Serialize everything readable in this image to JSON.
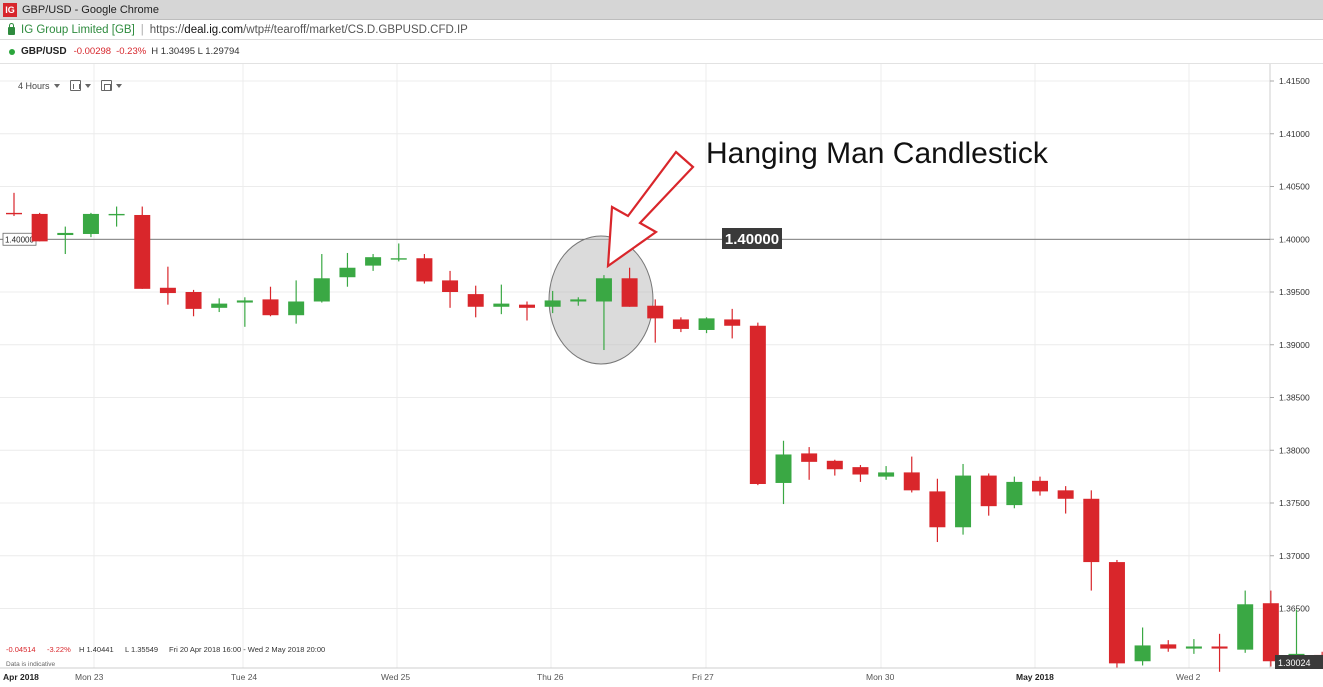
{
  "window": {
    "title": "GBP/USD - Google Chrome",
    "logo_text": "IG"
  },
  "address_bar": {
    "site_name": "IG Group Limited [GB]",
    "separator": "|",
    "url_prefix": "https://",
    "url_domain": "deal.ig.com",
    "url_path": "/wtp#/tearoff/market/CS.D.GBPUSD.CFD.IP"
  },
  "market": {
    "name": "GBP/USD",
    "change": "-0.00298",
    "change_pct": "-0.23%",
    "high_low": "H 1.30495  L 1.29794"
  },
  "toolbar": {
    "timeframe": "4 Hours",
    "chart_type_icon": "candles-icon",
    "calendar_icon": "calendar-icon"
  },
  "footer": {
    "change": "-0.04514",
    "change_pct": "-3.22%",
    "high": "H 1.40441",
    "low": "L 1.35549",
    "range": "Fri 20 Apr 2018 16:00 - Wed 2 May 2018 20:00",
    "indicative": "Data is indicative"
  },
  "annotation": {
    "text": "Hanging Man Candlestick",
    "level_label": "1.40000"
  },
  "colors": {
    "up": "#3aa844",
    "down": "#d9262b",
    "arrow": "#d9262b",
    "label_bg": "#3a3a3a"
  },
  "chart_data": {
    "type": "candlestick",
    "timeframe": "4 Hours",
    "ylim": [
      1.3,
      1.418
    ],
    "y_ticks": [
      "1.41500",
      "1.41000",
      "1.40500",
      "1.40000",
      "1.39500",
      "1.39000",
      "1.38500",
      "1.38000",
      "1.37500",
      "1.37000",
      "1.36500"
    ],
    "x_labels": [
      "Apr 2018",
      "Mon 23",
      "Tue 24",
      "Wed 25",
      "Thu 26",
      "Fri 27",
      "Mon 30",
      "May 2018",
      "Wed 2"
    ],
    "horizontal_line": 1.4,
    "horizontal_line_left_label": "1.40000",
    "last_price_label": "1.30024",
    "candles": [
      {
        "o": 1.4025,
        "h": 1.4044,
        "l": 1.4022,
        "c": 1.4024
      },
      {
        "o": 1.4024,
        "h": 1.4025,
        "l": 1.3998,
        "c": 1.3998
      },
      {
        "o": 1.4004,
        "h": 1.4012,
        "l": 1.3986,
        "c": 1.4006
      },
      {
        "o": 1.4005,
        "h": 1.4025,
        "l": 1.4002,
        "c": 1.4024
      },
      {
        "o": 1.4024,
        "h": 1.4031,
        "l": 1.4012,
        "c": 1.4024
      },
      {
        "o": 1.4023,
        "h": 1.4031,
        "l": 1.3953,
        "c": 1.3953
      },
      {
        "o": 1.3954,
        "h": 1.3974,
        "l": 1.3938,
        "c": 1.3949
      },
      {
        "o": 1.395,
        "h": 1.3952,
        "l": 1.3927,
        "c": 1.3934
      },
      {
        "o": 1.3935,
        "h": 1.3944,
        "l": 1.3931,
        "c": 1.3939
      },
      {
        "o": 1.394,
        "h": 1.3945,
        "l": 1.3917,
        "c": 1.3942
      },
      {
        "o": 1.3943,
        "h": 1.3955,
        "l": 1.3927,
        "c": 1.3928
      },
      {
        "o": 1.3928,
        "h": 1.3961,
        "l": 1.392,
        "c": 1.3941
      },
      {
        "o": 1.3941,
        "h": 1.3986,
        "l": 1.394,
        "c": 1.3963
      },
      {
        "o": 1.3964,
        "h": 1.3987,
        "l": 1.3955,
        "c": 1.3973
      },
      {
        "o": 1.3975,
        "h": 1.3986,
        "l": 1.397,
        "c": 1.3983
      },
      {
        "o": 1.3981,
        "h": 1.3996,
        "l": 1.3979,
        "c": 1.3982
      },
      {
        "o": 1.3982,
        "h": 1.3986,
        "l": 1.3958,
        "c": 1.396
      },
      {
        "o": 1.3961,
        "h": 1.397,
        "l": 1.3935,
        "c": 1.395
      },
      {
        "o": 1.3948,
        "h": 1.3956,
        "l": 1.3926,
        "c": 1.3936
      },
      {
        "o": 1.3936,
        "h": 1.3957,
        "l": 1.3929,
        "c": 1.3939
      },
      {
        "o": 1.3938,
        "h": 1.3941,
        "l": 1.3923,
        "c": 1.3935
      },
      {
        "o": 1.3936,
        "h": 1.3951,
        "l": 1.393,
        "c": 1.3942
      },
      {
        "o": 1.3941,
        "h": 1.3945,
        "l": 1.3937,
        "c": 1.3943
      },
      {
        "o": 1.3941,
        "h": 1.3966,
        "l": 1.3895,
        "c": 1.3963
      },
      {
        "o": 1.3963,
        "h": 1.3973,
        "l": 1.3936,
        "c": 1.3936
      },
      {
        "o": 1.3937,
        "h": 1.3943,
        "l": 1.3902,
        "c": 1.3925
      },
      {
        "o": 1.3924,
        "h": 1.3926,
        "l": 1.3912,
        "c": 1.3915
      },
      {
        "o": 1.3914,
        "h": 1.3926,
        "l": 1.3911,
        "c": 1.3925
      },
      {
        "o": 1.3924,
        "h": 1.3934,
        "l": 1.3906,
        "c": 1.3918
      },
      {
        "o": 1.3918,
        "h": 1.3921,
        "l": 1.3767,
        "c": 1.3768
      },
      {
        "o": 1.3769,
        "h": 1.3809,
        "l": 1.3749,
        "c": 1.3796
      },
      {
        "o": 1.3797,
        "h": 1.3803,
        "l": 1.3772,
        "c": 1.3789
      },
      {
        "o": 1.379,
        "h": 1.3791,
        "l": 1.3776,
        "c": 1.3782
      },
      {
        "o": 1.3784,
        "h": 1.3786,
        "l": 1.377,
        "c": 1.3777
      },
      {
        "o": 1.3775,
        "h": 1.3785,
        "l": 1.3772,
        "c": 1.3779
      },
      {
        "o": 1.3779,
        "h": 1.3794,
        "l": 1.376,
        "c": 1.3762
      },
      {
        "o": 1.3761,
        "h": 1.3773,
        "l": 1.3713,
        "c": 1.3727
      },
      {
        "o": 1.3727,
        "h": 1.3787,
        "l": 1.372,
        "c": 1.3776
      },
      {
        "o": 1.3776,
        "h": 1.3778,
        "l": 1.3738,
        "c": 1.3747
      },
      {
        "o": 1.3748,
        "h": 1.3775,
        "l": 1.3745,
        "c": 1.377
      },
      {
        "o": 1.3771,
        "h": 1.3775,
        "l": 1.3757,
        "c": 1.3761
      },
      {
        "o": 1.3762,
        "h": 1.3766,
        "l": 1.374,
        "c": 1.3754
      },
      {
        "o": 1.3754,
        "h": 1.3762,
        "l": 1.3667,
        "c": 1.3694
      },
      {
        "o": 1.3694,
        "h": 1.3696,
        "l": 1.3594,
        "c": 1.3598
      },
      {
        "o": 1.36,
        "h": 1.3632,
        "l": 1.3596,
        "c": 1.3615
      },
      {
        "o": 1.3616,
        "h": 1.362,
        "l": 1.3609,
        "c": 1.3612
      },
      {
        "o": 1.3612,
        "h": 1.3621,
        "l": 1.3607,
        "c": 1.3614
      },
      {
        "o": 1.3614,
        "h": 1.3626,
        "l": 1.359,
        "c": 1.3612
      },
      {
        "o": 1.3611,
        "h": 1.3667,
        "l": 1.3608,
        "c": 1.3654
      },
      {
        "o": 1.3655,
        "h": 1.3667,
        "l": 1.3595,
        "c": 1.36
      },
      {
        "o": 1.3603,
        "h": 1.3649,
        "l": 1.3598,
        "c": 1.3607
      },
      {
        "o": 1.3606,
        "h": 1.3609,
        "l": 1.3598,
        "c": 1.36
      }
    ]
  }
}
